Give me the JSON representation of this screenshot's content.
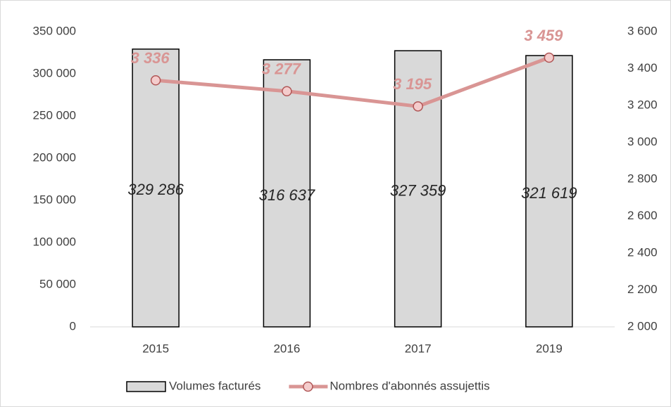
{
  "chart_data": {
    "type": "bar",
    "categories": [
      "2015",
      "2016",
      "2017",
      "2019"
    ],
    "series": [
      {
        "name": "Volumes facturés",
        "type": "bar",
        "color": "#d9d9d9",
        "values": [
          329286,
          316637,
          327359,
          321619
        ],
        "value_labels": [
          "329 286",
          "316 637",
          "327 359",
          "321 619"
        ]
      },
      {
        "name": "Nombres d'abonnés assujettis",
        "type": "line",
        "axis": "y2",
        "color": "#d99594",
        "values": [
          3336,
          3277,
          3195,
          3459
        ],
        "value_labels": [
          "3 336",
          "3 277",
          "3 195",
          "3 459"
        ]
      }
    ],
    "ylim": [
      0,
      350000
    ],
    "yticks": [
      0,
      {
        "value": 50000,
        "label": "50 000"
      },
      {
        "value": 100000,
        "label": "100 000"
      },
      {
        "value": 150000,
        "label": "150 000"
      },
      {
        "value": 200000,
        "label": "200 000"
      },
      {
        "value": 250000,
        "label": "250 000"
      },
      {
        "value": 300000,
        "label": "300 000"
      },
      {
        "value": 350000,
        "label": "350 000"
      }
    ],
    "y2lim": [
      2000,
      3600
    ],
    "y2ticks": [
      {
        "value": 2000,
        "label": "2 000"
      },
      {
        "value": 2200,
        "label": "2 200"
      },
      {
        "value": 2400,
        "label": "2 400"
      },
      {
        "value": 2600,
        "label": "2 600"
      },
      {
        "value": 2800,
        "label": "2 800"
      },
      {
        "value": 3000,
        "label": "3 000"
      },
      {
        "value": 3200,
        "label": "3 200"
      },
      {
        "value": 3400,
        "label": "3 400"
      },
      {
        "value": 3600,
        "label": "3 600"
      }
    ],
    "legend": "bottom"
  }
}
